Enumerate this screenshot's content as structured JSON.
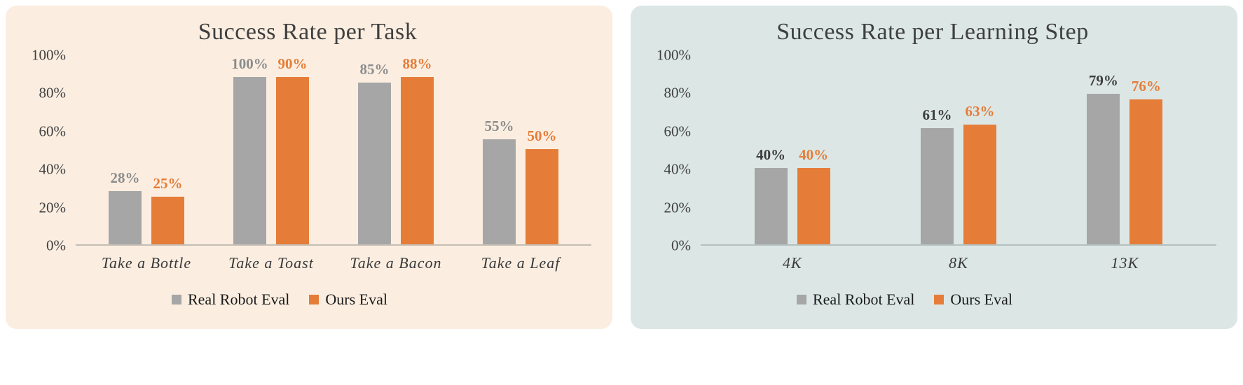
{
  "chart_data": [
    {
      "type": "bar",
      "title": "Success Rate per Task",
      "panel_background": "#fbeee1",
      "axis_color": "#c6beb3",
      "categories": [
        "Take a Bottle",
        "Take a Toast",
        "Take a Bacon",
        "Take a Leaf"
      ],
      "series": [
        {
          "name": "Real Robot Eval",
          "color": "#a6a6a6",
          "label_color": "#8c8c8c",
          "values": [
            28,
            100,
            85,
            55
          ]
        },
        {
          "name": "Ours Eval",
          "color": "#e57d39",
          "label_color": "#e57d39",
          "values": [
            25,
            90,
            88,
            50
          ]
        }
      ],
      "xlabel": "",
      "ylabel": "",
      "ylim": [
        0,
        100
      ],
      "yticks": [
        "0%",
        "20%",
        "40%",
        "60%",
        "80%",
        "100%"
      ],
      "value_suffix": "%",
      "grid": false,
      "legend_position": "bottom"
    },
    {
      "type": "bar",
      "title": "Success Rate per Learning Step",
      "panel_background": "#dce7e5",
      "axis_color": "#b5c1be",
      "categories": [
        "4K",
        "8K",
        "13K"
      ],
      "series": [
        {
          "name": "Real Robot Eval",
          "color": "#a6a6a6",
          "label_color": "#3d3d3d",
          "values": [
            40,
            61,
            79
          ]
        },
        {
          "name": "Ours Eval",
          "color": "#e57d39",
          "label_color": "#e57d39",
          "values": [
            40,
            63,
            76
          ]
        }
      ],
      "xlabel": "",
      "ylabel": "",
      "ylim": [
        0,
        100
      ],
      "yticks": [
        "0%",
        "20%",
        "40%",
        "60%",
        "80%",
        "100%"
      ],
      "value_suffix": "%",
      "grid": false,
      "legend_position": "bottom"
    }
  ]
}
